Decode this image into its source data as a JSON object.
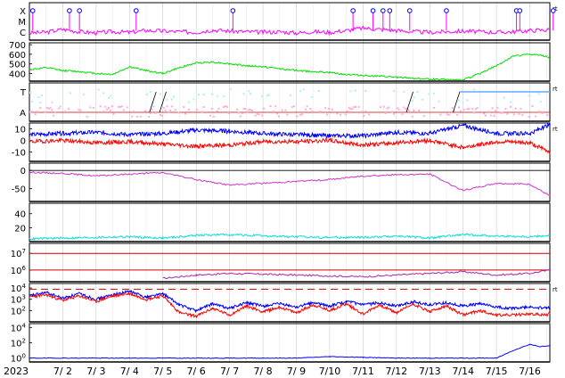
{
  "chart_data": [
    {
      "panel": "xray-flares",
      "type": "line",
      "y_tick_labels": [
        "X",
        "M",
        "C"
      ],
      "y_scale": "flare-class",
      "right_label": "rt",
      "colors": {
        "series": "#ff00ff",
        "markers": "#0000ff"
      },
      "series": [
        {
          "x_day": [
            1.0,
            1.5,
            2.0,
            2.5,
            3.0,
            3.5,
            4.0,
            4.5,
            5.0,
            5.5,
            6.0,
            6.5,
            7.0,
            7.5,
            8.0,
            8.5,
            9.0,
            9.5,
            10.0,
            10.5,
            11.0,
            11.5,
            12.0,
            12.5,
            13.0,
            13.5,
            14.0,
            14.5,
            15.0,
            15.5,
            16.0,
            16.5,
            16.6
          ],
          "y_class": [
            0.8,
            0.85,
            1.1,
            0.9,
            0.8,
            0.9,
            0.85,
            1.0,
            0.95,
            0.9,
            0.85,
            1.05,
            0.95,
            0.9,
            0.85,
            0.9,
            0.8,
            0.9,
            0.85,
            1.0,
            1.2,
            1.1,
            1.0,
            0.9,
            0.85,
            0.9,
            0.95,
            0.9,
            0.85,
            0.9,
            1.0,
            1.05,
            1.1
          ]
        }
      ],
      "flare_markers_day": [
        1.1,
        2.2,
        2.5,
        4.2,
        7.1,
        10.7,
        11.3,
        11.6,
        11.8,
        12.4,
        13.5,
        15.6,
        15.7,
        16.7
      ]
    },
    {
      "panel": "solar-wind-speed",
      "type": "line",
      "y_ticks": [
        400,
        500,
        600,
        700
      ],
      "ylim": [
        320,
        720
      ],
      "colors": {
        "series": "#00dd00"
      },
      "series": [
        {
          "x_day": [
            1.0,
            1.5,
            2.0,
            2.5,
            3.0,
            3.5,
            4.0,
            4.5,
            5.0,
            5.5,
            6.0,
            6.5,
            7.0,
            7.5,
            8.0,
            8.5,
            9.0,
            9.5,
            10.0,
            10.5,
            11.0,
            11.5,
            12.0,
            12.5,
            13.0,
            13.5,
            14.0,
            14.5,
            15.0,
            15.5,
            16.0,
            16.5,
            16.6
          ],
          "values": [
            440,
            460,
            430,
            420,
            400,
            390,
            470,
            430,
            400,
            460,
            510,
            520,
            500,
            480,
            470,
            450,
            430,
            420,
            410,
            390,
            380,
            370,
            360,
            350,
            340,
            340,
            330,
            400,
            480,
            580,
            600,
            580,
            560
          ]
        }
      ]
    },
    {
      "panel": "imf-sector",
      "type": "scatter",
      "y_tick_labels": [
        "T",
        "A"
      ],
      "right_label": "rt",
      "colors": {
        "toward": "#aaeeff",
        "away": "#ffaadd",
        "step": "#000000",
        "blue_line": "#66aaff"
      },
      "step_transitions_day": [
        [
          4.6,
          4.8
        ],
        [
          4.9,
          5.1
        ],
        [
          12.3,
          12.5
        ],
        [
          13.7,
          13.9
        ]
      ],
      "sector_level_after_day": [
        {
          "day": 13.9,
          "level": "T"
        }
      ]
    },
    {
      "panel": "imf-components",
      "type": "line",
      "y_ticks": [
        10,
        0,
        -10
      ],
      "ylim": [
        -18,
        15
      ],
      "right_label": "rt",
      "colors": {
        "bt": "#0000ff",
        "bz": "#ff0000"
      },
      "series": [
        {
          "name_key": "bt",
          "x_day": [
            1.0,
            2.0,
            3.0,
            4.0,
            5.0,
            6.0,
            7.0,
            8.0,
            9.0,
            10.0,
            11.0,
            12.0,
            13.0,
            14.0,
            15.0,
            16.0,
            16.6
          ],
          "values": [
            5,
            6,
            7,
            5,
            6,
            9,
            8,
            6,
            5,
            4,
            4,
            7,
            6,
            13,
            6,
            6,
            14
          ]
        },
        {
          "name_key": "bz",
          "x_day": [
            1.0,
            2.0,
            3.0,
            4.0,
            5.0,
            6.0,
            7.0,
            8.0,
            9.0,
            10.0,
            11.0,
            12.0,
            13.0,
            14.0,
            15.0,
            16.0,
            16.6
          ],
          "values": [
            -1,
            0,
            -2,
            -1,
            -3,
            -5,
            -4,
            -1,
            -1,
            0,
            -4,
            -2,
            0,
            -6,
            -1,
            -2,
            -10
          ]
        }
      ]
    },
    {
      "panel": "dst-index",
      "type": "line",
      "y_ticks": [
        0,
        -50
      ],
      "ylim": [
        -85,
        20
      ],
      "colors": {
        "series": "#cc33cc",
        "zero_line": "#000000"
      },
      "series": [
        {
          "x_day": [
            1.0,
            2.0,
            3.0,
            4.0,
            5.0,
            6.0,
            7.0,
            8.0,
            9.0,
            10.0,
            11.0,
            12.0,
            13.0,
            14.0,
            15.0,
            16.0,
            16.6
          ],
          "values": [
            -5,
            -8,
            -15,
            -10,
            -6,
            -25,
            -40,
            -35,
            -30,
            -25,
            -15,
            -12,
            -10,
            -55,
            -35,
            -38,
            -70
          ]
        }
      ]
    },
    {
      "panel": "kp-proxy",
      "type": "line",
      "y_ticks": [
        20,
        40
      ],
      "ylim": [
        0,
        55
      ],
      "colors": {
        "series": "#00dddd"
      },
      "series": [
        {
          "x_day": [
            1.0,
            2.0,
            3.0,
            4.0,
            5.0,
            6.0,
            7.0,
            8.0,
            9.0,
            10.0,
            11.0,
            12.0,
            13.0,
            14.0,
            15.0,
            16.0,
            16.6
          ],
          "values": [
            4,
            5,
            6,
            7,
            5,
            9,
            10,
            8,
            7,
            6,
            6,
            8,
            5,
            10,
            8,
            7,
            9
          ]
        }
      ]
    },
    {
      "panel": "electron-flux",
      "type": "line",
      "y_scale": "log",
      "y_tick_labels": [
        "10^6",
        "10^7"
      ],
      "ylim_log10": [
        5.3,
        7.6
      ],
      "colors": {
        "series": "#aa22aa",
        "thresholds": "#cc0000"
      },
      "threshold_log10": [
        6.0,
        7.0
      ],
      "series": [
        {
          "x_day": [
            5.0,
            6.0,
            7.0,
            8.0,
            9.0,
            10.0,
            11.0,
            12.0,
            13.0,
            14.0,
            15.0,
            16.0,
            16.6
          ],
          "values_log10": [
            5.5,
            5.7,
            5.8,
            5.75,
            5.7,
            5.65,
            5.6,
            5.7,
            5.8,
            5.9,
            5.7,
            5.8,
            6.0
          ]
        }
      ]
    },
    {
      "panel": "proton-flux",
      "type": "line",
      "y_scale": "log",
      "y_tick_labels": [
        "10^2",
        "10^3",
        "10^4"
      ],
      "ylim_log10": [
        1.0,
        4.4
      ],
      "right_label": "rt",
      "colors": {
        "series_a": "#0000ff",
        "series_b": "#ff0000",
        "threshold": "#cc0000"
      },
      "threshold_log10": 3.9,
      "series": [
        {
          "name_key": "a",
          "x_day": [
            1.0,
            1.5,
            2.0,
            2.5,
            3.0,
            3.5,
            4.0,
            4.5,
            5.0,
            5.5,
            6.0,
            6.5,
            7.0,
            7.5,
            8.0,
            8.5,
            9.0,
            9.5,
            10.0,
            10.5,
            11.0,
            11.5,
            12.0,
            12.5,
            13.0,
            13.5,
            14.0,
            14.5,
            15.0,
            15.5,
            16.0,
            16.5,
            16.6
          ],
          "values_log10": [
            3.3,
            3.6,
            3.1,
            3.5,
            3.0,
            3.4,
            3.7,
            3.2,
            3.5,
            2.5,
            2.0,
            2.6,
            2.2,
            2.7,
            2.4,
            2.6,
            2.3,
            2.7,
            2.4,
            2.8,
            2.5,
            2.7,
            2.4,
            2.8,
            2.5,
            2.7,
            2.4,
            2.6,
            2.3,
            2.2,
            2.3,
            2.2,
            2.3
          ]
        },
        {
          "name_key": "b",
          "x_day": [
            1.0,
            1.5,
            2.0,
            2.5,
            3.0,
            3.5,
            4.0,
            4.5,
            5.0,
            5.5,
            6.0,
            6.5,
            7.0,
            7.5,
            8.0,
            8.5,
            9.0,
            9.5,
            10.0,
            10.5,
            11.0,
            11.5,
            12.0,
            12.5,
            13.0,
            13.5,
            14.0,
            14.5,
            15.0,
            15.5,
            16.0,
            16.5,
            16.6
          ],
          "values_log10": [
            3.2,
            3.4,
            2.9,
            3.3,
            2.8,
            3.3,
            3.5,
            3.0,
            3.3,
            1.8,
            1.5,
            2.2,
            1.6,
            2.4,
            1.9,
            2.3,
            1.8,
            2.5,
            2.0,
            2.6,
            1.7,
            2.5,
            1.8,
            2.6,
            1.9,
            2.4,
            1.6,
            2.0,
            1.6,
            1.6,
            1.7,
            1.6,
            1.8
          ]
        }
      ]
    },
    {
      "panel": "proton-flux-high",
      "type": "line",
      "y_scale": "log",
      "y_tick_labels": [
        "10^0",
        "10^2",
        "10^4"
      ],
      "ylim_log10": [
        -0.5,
        4.5
      ],
      "colors": {
        "series": "#0000ff"
      },
      "series": [
        {
          "x_day": [
            1.0,
            2.0,
            3.0,
            4.0,
            5.0,
            6.0,
            7.0,
            8.0,
            9.0,
            10.0,
            11.0,
            12.0,
            13.0,
            14.0,
            15.0,
            15.5,
            16.0,
            16.3,
            16.6
          ],
          "values_log10": [
            0.0,
            0.0,
            0.0,
            0.0,
            0.0,
            0.0,
            0.0,
            0.0,
            0.0,
            0.2,
            0.1,
            0.0,
            0.0,
            0.0,
            0.0,
            1.0,
            1.8,
            1.5,
            1.6
          ]
        }
      ]
    }
  ],
  "x_axis": {
    "year_label": "2023",
    "tick_labels": [
      "7/ 2",
      "7/ 3",
      "7/ 4",
      "7/ 5",
      "7/ 6",
      "7/ 7",
      "7/ 8",
      "7/ 9",
      "7/10",
      "7/11",
      "7/12",
      "7/13",
      "7/14",
      "7/15",
      "7/16"
    ],
    "tick_days": [
      2,
      3,
      4,
      5,
      6,
      7,
      8,
      9,
      10,
      11,
      12,
      13,
      14,
      15,
      16
    ],
    "xlim_day": [
      1.0,
      16.6
    ],
    "grid": true
  }
}
